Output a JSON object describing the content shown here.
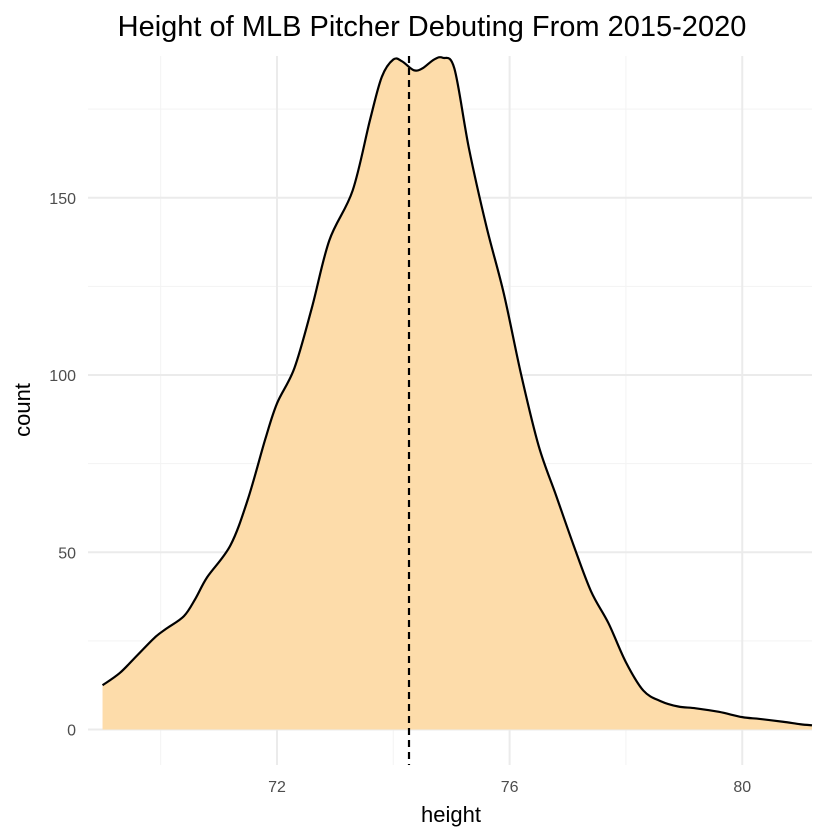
{
  "chart_data": {
    "type": "area",
    "title": "Height of MLB Pitcher Debuting From 2015-2020",
    "xlabel": "height",
    "ylabel": "count",
    "xlim": [
      68.75,
      81.2
    ],
    "ylim": [
      -10,
      190
    ],
    "x_ticks": [
      72,
      76,
      80
    ],
    "x_minor_ticks": [
      70,
      74,
      78
    ],
    "y_ticks": [
      0,
      50,
      100,
      150
    ],
    "y_minor_ticks": [
      25,
      75,
      125,
      175
    ],
    "grid": true,
    "legend": "none",
    "fill_color": "#FDDCAA",
    "line_color": "#000000",
    "mean_line": {
      "x": 74.27,
      "style": "dashed",
      "color": "#000000"
    },
    "series": [
      {
        "x": [
          69,
          69.3,
          69.6,
          69.9,
          70.1,
          70.4,
          70.6,
          70.8,
          71.2,
          71.5,
          71.8,
          72.0,
          72.3,
          72.6,
          72.9,
          73.3,
          73.6,
          73.8,
          74.0,
          74.15,
          74.35,
          74.5,
          74.7,
          74.85,
          75.05,
          75.3,
          75.6,
          75.9,
          76.2,
          76.5,
          76.8,
          77.1,
          77.4,
          77.7,
          78.0,
          78.3,
          78.6,
          78.9,
          79.2,
          79.6,
          80.0,
          80.3,
          80.7,
          81.0,
          81.2
        ],
        "y": [
          12.5,
          16,
          21,
          26,
          28.5,
          32,
          37,
          43,
          52,
          65,
          82,
          92,
          102,
          119,
          138,
          152,
          172,
          184,
          189,
          188.5,
          186,
          186.5,
          189,
          189.5,
          186.5,
          164,
          142,
          123,
          100,
          80,
          66,
          52,
          39,
          30,
          19,
          11,
          8,
          6.5,
          6,
          5,
          3.5,
          3,
          2.2,
          1.5,
          1.2
        ]
      }
    ]
  }
}
